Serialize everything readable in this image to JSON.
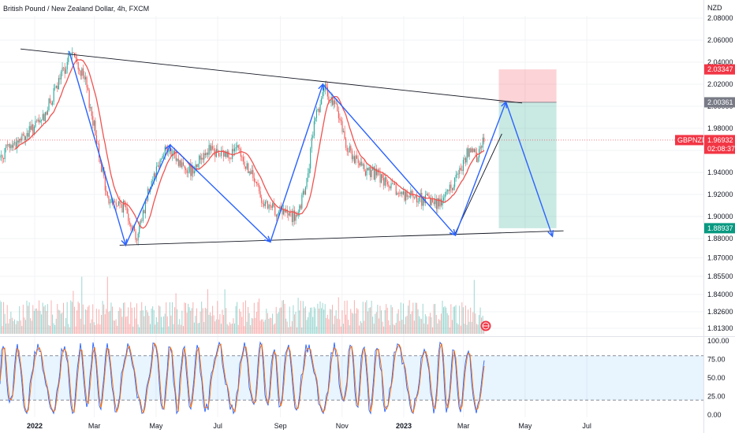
{
  "header": {
    "title": "British Pound / New Zealand Dollar, 4h, FXCM",
    "currency": "NZD"
  },
  "chart_data": {
    "type": "candlestick",
    "symbol": "GBPNZD",
    "timeframe": "4h",
    "price_axis": {
      "ticks": [
        2.08,
        2.06,
        2.04,
        2.02,
        2.0,
        1.98,
        1.96,
        1.94,
        1.92,
        1.9,
        1.88,
        1.87,
        1.855,
        1.84,
        1.826,
        1.813
      ],
      "labels": [
        "2.08000",
        "2.06000",
        "2.04000",
        "2.02000",
        "2.00000",
        "1.98000",
        "1.96000",
        "1.94000",
        "1.92000",
        "1.90000",
        "1.88000",
        "1.87000",
        "1.85500",
        "1.84000",
        "1.82600",
        "1.81300"
      ]
    },
    "time_axis": {
      "ticks": [
        "2022-01",
        "2022-03",
        "2022-05",
        "2022-07",
        "2022-09",
        "2022-11",
        "2023-01",
        "2023-03",
        "2023-05",
        "2023-07"
      ],
      "labels": [
        "2022",
        "Mar",
        "May",
        "Jul",
        "Sep",
        "Nov",
        "2023",
        "Mar",
        "May",
        "Jul"
      ]
    },
    "price_path": [
      [
        "2021-11-20",
        1.945
      ],
      [
        "2021-12-05",
        1.962
      ],
      [
        "2021-12-20",
        1.971
      ],
      [
        "2022-01-08",
        1.987
      ],
      [
        "2022-01-22",
        2.015
      ],
      [
        "2022-02-06",
        2.05
      ],
      [
        "2022-02-20",
        2.022
      ],
      [
        "2022-03-05",
        1.962
      ],
      [
        "2022-03-14",
        1.915
      ],
      [
        "2022-04-01",
        1.908
      ],
      [
        "2022-04-12",
        1.88
      ],
      [
        "2022-04-25",
        1.93
      ],
      [
        "2022-05-10",
        1.962
      ],
      [
        "2022-05-25",
        1.948
      ],
      [
        "2022-06-05",
        1.942
      ],
      [
        "2022-06-20",
        1.961
      ],
      [
        "2022-07-05",
        1.955
      ],
      [
        "2022-07-20",
        1.96
      ],
      [
        "2022-08-05",
        1.935
      ],
      [
        "2022-08-18",
        1.908
      ],
      [
        "2022-09-01",
        1.905
      ],
      [
        "2022-09-18",
        1.898
      ],
      [
        "2022-09-28",
        1.935
      ],
      [
        "2022-10-05",
        1.99
      ],
      [
        "2022-10-15",
        2.015
      ],
      [
        "2022-10-28",
        1.995
      ],
      [
        "2022-11-05",
        1.965
      ],
      [
        "2022-11-18",
        1.945
      ],
      [
        "2022-12-05",
        1.938
      ],
      [
        "2022-12-20",
        1.925
      ],
      [
        "2023-01-05",
        1.918
      ],
      [
        "2023-01-22",
        1.915
      ],
      [
        "2023-02-05",
        1.912
      ],
      [
        "2023-02-18",
        1.928
      ],
      [
        "2023-03-05",
        1.958
      ],
      [
        "2023-03-15",
        1.955
      ],
      [
        "2023-03-22",
        1.972
      ]
    ],
    "trendlines": [
      {
        "points": [
          [
            "2021-12-18",
            2.052
          ],
          [
            "2023-04-28",
            2.003
          ]
        ]
      },
      {
        "points": [
          [
            "2022-03-26",
            1.874
          ],
          [
            "2023-06-08",
            1.887
          ]
        ]
      },
      {
        "points": [
          [
            "2023-02-20",
            1.883
          ],
          [
            "2023-04-08",
            1.975
          ]
        ]
      }
    ],
    "zigzag": [
      [
        "2022-02-04",
        2.05
      ],
      [
        "2022-04-01",
        1.874
      ],
      [
        "2022-05-15",
        1.965
      ],
      [
        "2022-08-22",
        1.877
      ],
      [
        "2022-10-13",
        2.02
      ],
      [
        "2023-02-21",
        1.883
      ],
      [
        "2023-04-12",
        2.004
      ],
      [
        "2023-05-28",
        1.882
      ]
    ],
    "position": {
      "entry": 2.00361,
      "stop": 2.03347,
      "target": 1.88937,
      "start": "2023-04-05",
      "end": "2023-06-01"
    },
    "price_tags": [
      {
        "label": "2.03347",
        "value": 2.03347,
        "color": "#f23645"
      },
      {
        "label": "2.00361",
        "value": 2.00361,
        "color": "#787b86"
      },
      {
        "label": "1.88937",
        "value": 1.88937,
        "color": "#089981"
      }
    ],
    "current": {
      "symbol": "GBPNZD",
      "price": "1.96932",
      "value": 1.96932,
      "countdown": "02:08:37",
      "color": "#f23645"
    },
    "oscillator": {
      "ticks": [
        100,
        75,
        50,
        25,
        0
      ],
      "labels": [
        "100.00",
        "75.00",
        "50.00",
        "25.00",
        "0.00"
      ],
      "upper_band": 80,
      "lower_band": 20
    },
    "colors": {
      "up": "#26a69a",
      "down": "#ef5350",
      "ma": "#ef5350",
      "drawing": "#2962ff",
      "trendline": "#131722"
    }
  }
}
